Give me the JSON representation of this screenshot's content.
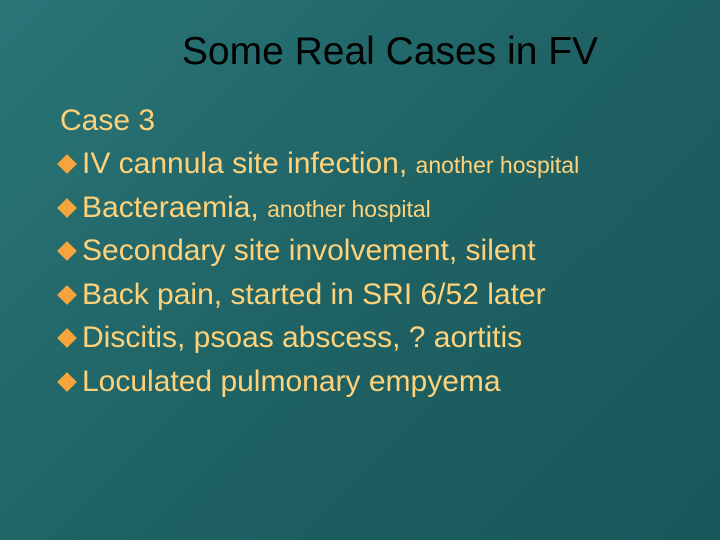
{
  "slide": {
    "background_gradient": [
      "#2a7577",
      "#1f6264",
      "#18575a"
    ],
    "title": {
      "text": "Some Real Cases in FV",
      "color": "#000000",
      "fontsize": 39
    },
    "subheading": {
      "text": "Case 3",
      "color": "#ffd27a",
      "fontsize": 30
    },
    "bullet_color": "#f7a43c",
    "body_color": "#ffd27a",
    "body_fontsize": 30,
    "small_fontsize": 23,
    "bullets": [
      {
        "main": "IV cannula site infection, ",
        "trail": "another hospital"
      },
      {
        "main": "Bacteraemia, ",
        "trail": "another hospital"
      },
      {
        "main": "Secondary site involvement, silent",
        "trail": ""
      },
      {
        "main": "Back pain, started in SRI 6/52 later",
        "trail": ""
      },
      {
        "main": "Discitis, psoas abscess, ? aortitis",
        "trail": ""
      },
      {
        "main": "Loculated pulmonary empyema",
        "trail": ""
      }
    ]
  }
}
